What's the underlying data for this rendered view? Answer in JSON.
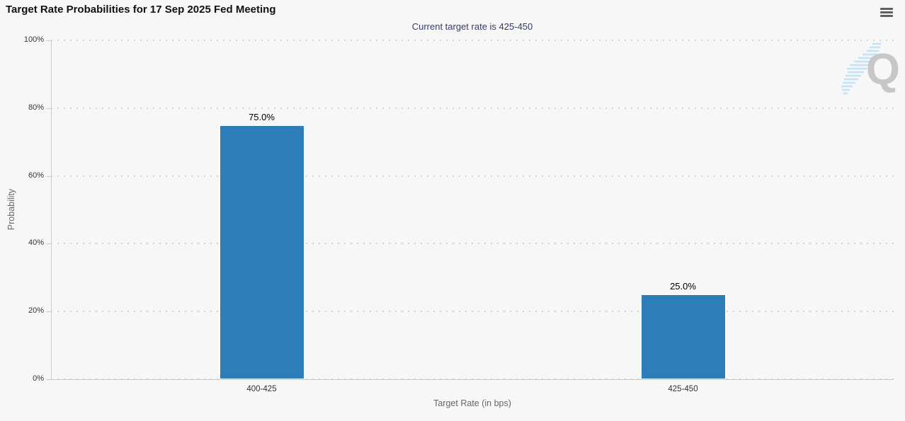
{
  "header": {
    "menu_icon": "hamburger-export-menu"
  },
  "chart_data": {
    "type": "bar",
    "title": "Target Rate Probabilities for 17 Sep 2025 Fed Meeting",
    "subtitle": "Current target rate is 425-450",
    "categories": [
      "400-425",
      "425-450"
    ],
    "values": [
      75.0,
      25.0
    ],
    "data_labels": [
      "75.0%",
      "25.0%"
    ],
    "xlabel": "Target Rate (in bps)",
    "ylabel": "Probability",
    "ylim": [
      0,
      100
    ],
    "yticks": [
      0,
      20,
      40,
      60,
      80,
      100
    ],
    "ytick_labels": [
      "0%",
      "20%",
      "40%",
      "60%",
      "80%",
      "100%"
    ],
    "grid": "dotted-horizontal",
    "legend": "none",
    "colors": {
      "bar": "#2d7eb8",
      "background": "#f7f7f7",
      "subtitle": "#333a6e",
      "axis": "#cccccc",
      "grid": "#d2d2d2",
      "tick_label": "#333333",
      "axis_title": "#666666",
      "data_label": "#000000"
    }
  },
  "watermark": {
    "letter": "Q"
  }
}
